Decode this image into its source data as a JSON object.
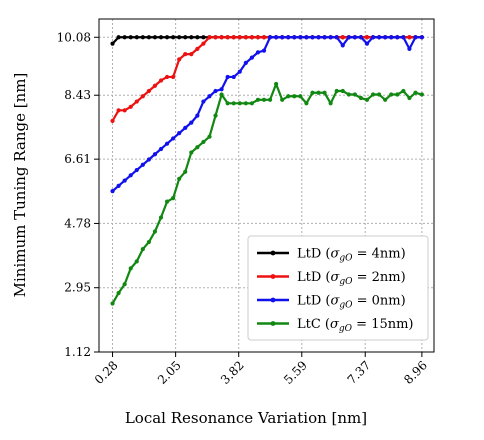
{
  "chart_data": {
    "type": "line",
    "title": "",
    "xlabel": "Local Resonance Variation [nm]",
    "ylabel": "Minimum Tuning Range [nm]",
    "xlim": [
      -0.1,
      9.3
    ],
    "ylim": [
      1.12,
      10.6
    ],
    "xticks": [
      0.28,
      2.05,
      3.82,
      5.59,
      7.37,
      8.96
    ],
    "xtick_labels": [
      "0.28",
      "2.05",
      "3.82",
      "5.59",
      "7.37",
      "8.96"
    ],
    "yticks": [
      1.12,
      2.95,
      4.78,
      6.61,
      8.43,
      10.08
    ],
    "ytick_labels": [
      "1.12",
      "2.95",
      "4.78",
      "6.61",
      "8.43",
      "10.08"
    ],
    "grid": true,
    "legend_position": "lower-right",
    "x": [
      0.28,
      0.45,
      0.62,
      0.79,
      0.96,
      1.13,
      1.3,
      1.47,
      1.64,
      1.81,
      1.98,
      2.15,
      2.32,
      2.49,
      2.66,
      2.83,
      3.0,
      3.17,
      3.34,
      3.51,
      3.68,
      3.85,
      4.02,
      4.19,
      4.36,
      4.53,
      4.7,
      4.87,
      5.04,
      5.21,
      5.38,
      5.55,
      5.72,
      5.89,
      6.06,
      6.23,
      6.4,
      6.57,
      6.74,
      6.91,
      7.08,
      7.25,
      7.42,
      7.59,
      7.76,
      7.93,
      8.1,
      8.27,
      8.44,
      8.61,
      8.78,
      8.96
    ],
    "series": [
      {
        "name": "LtD (σgO = 4nm)",
        "legend_label": "LtD (",
        "legend_sigma": "σ",
        "legend_sub": "gO",
        "legend_tail": " = 4nm)",
        "color": "#000000",
        "values": [
          9.9,
          10.08,
          10.08,
          10.08,
          10.08,
          10.08,
          10.08,
          10.08,
          10.08,
          10.08,
          10.08,
          10.08,
          10.08,
          10.08,
          10.08,
          10.08,
          10.08,
          10.08,
          10.08,
          10.08,
          10.08,
          10.08,
          10.08,
          10.08,
          10.08,
          10.08,
          10.08,
          10.08,
          10.08,
          10.08,
          10.08,
          10.08,
          10.08,
          10.08,
          10.08,
          10.08,
          10.08,
          10.08,
          10.08,
          10.08,
          10.08,
          10.08,
          10.08,
          10.08,
          10.08,
          10.08,
          10.08,
          10.08,
          10.08,
          10.08,
          10.08,
          10.08
        ]
      },
      {
        "name": "LtD (σgO = 2nm)",
        "legend_label": "LtD (",
        "legend_sigma": "σ",
        "legend_sub": "gO",
        "legend_tail": " = 2nm)",
        "color": "#ee1111",
        "values": [
          7.7,
          8.0,
          8.0,
          8.1,
          8.25,
          8.4,
          8.55,
          8.7,
          8.85,
          8.95,
          8.95,
          9.45,
          9.6,
          9.6,
          9.75,
          9.9,
          10.08,
          10.08,
          10.08,
          10.08,
          10.08,
          10.08,
          10.08,
          10.08,
          10.08,
          10.08,
          10.08,
          10.08,
          10.08,
          10.08,
          10.08,
          10.08,
          10.08,
          10.08,
          10.08,
          10.08,
          10.08,
          10.08,
          10.08,
          10.08,
          10.08,
          10.08,
          10.08,
          10.08,
          10.08,
          10.08,
          10.08,
          10.08,
          10.08,
          10.08,
          10.08,
          10.08
        ]
      },
      {
        "name": "LtD (σgO = 0nm)",
        "legend_label": "LtD (",
        "legend_sigma": "σ",
        "legend_sub": "gO",
        "legend_tail": " = 0nm)",
        "color": "#1111ee",
        "values": [
          5.7,
          5.85,
          6.0,
          6.15,
          6.3,
          6.45,
          6.6,
          6.75,
          6.9,
          7.05,
          7.2,
          7.35,
          7.5,
          7.65,
          7.85,
          8.25,
          8.4,
          8.55,
          8.6,
          8.95,
          8.95,
          9.1,
          9.35,
          9.5,
          9.65,
          9.7,
          10.08,
          10.08,
          10.08,
          10.08,
          10.08,
          10.08,
          10.08,
          10.08,
          10.08,
          10.08,
          10.08,
          10.08,
          9.85,
          10.08,
          10.08,
          10.08,
          9.9,
          10.08,
          10.08,
          10.08,
          10.08,
          10.08,
          10.08,
          9.75,
          10.08,
          10.08
        ]
      },
      {
        "name": "LtC (σgO = 15nm)",
        "legend_label": "LtC (",
        "legend_sigma": "σ",
        "legend_sub": "gO",
        "legend_tail": " = 15nm)",
        "color": "#118811",
        "values": [
          2.5,
          2.8,
          3.05,
          3.5,
          3.7,
          4.05,
          4.25,
          4.55,
          4.95,
          5.4,
          5.5,
          6.05,
          6.25,
          6.8,
          6.95,
          7.1,
          7.25,
          7.85,
          8.45,
          8.2,
          8.2,
          8.2,
          8.2,
          8.2,
          8.3,
          8.3,
          8.3,
          8.75,
          8.3,
          8.4,
          8.4,
          8.4,
          8.2,
          8.5,
          8.5,
          8.5,
          8.2,
          8.55,
          8.55,
          8.45,
          8.45,
          8.35,
          8.3,
          8.45,
          8.45,
          8.3,
          8.45,
          8.45,
          8.55,
          8.35,
          8.5,
          8.45
        ]
      }
    ]
  }
}
